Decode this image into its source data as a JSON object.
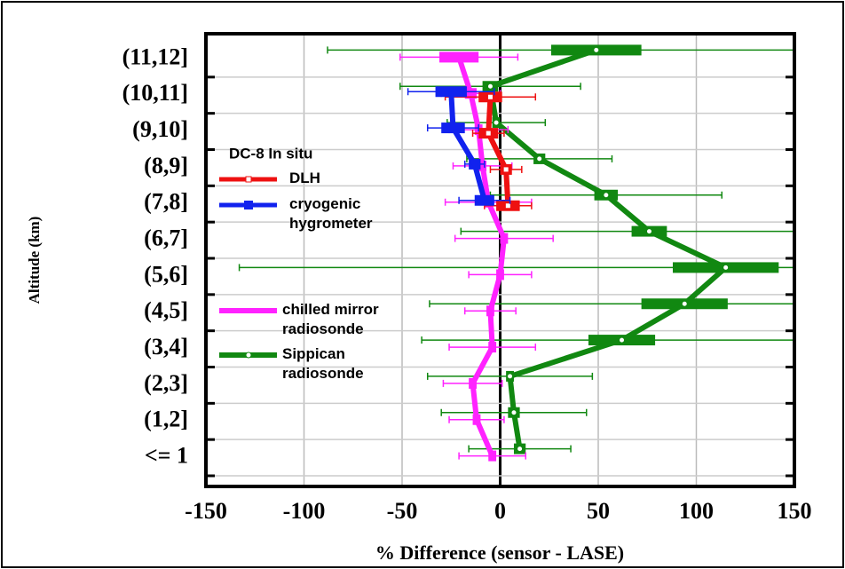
{
  "chart_data": {
    "type": "profile",
    "x_label": "% Difference (sensor - LASE)",
    "y_label": "Altitude (km)",
    "legend_title": "DC-8 In situ",
    "categories": [
      "<= 1",
      "(1,2]",
      "(2,3]",
      "(3,4]",
      "(4,5]",
      "(5,6]",
      "(6,7]",
      "(7,8]",
      "(8,9]",
      "(9,10]",
      "(10,11]",
      "(11,12]"
    ],
    "xlim": [
      -150,
      150
    ],
    "xticks": [
      -150,
      -100,
      -50,
      0,
      50,
      100,
      150
    ],
    "grid": true,
    "series": [
      {
        "name": "Sippican radiosonde",
        "color": "#118811",
        "values": [
          10,
          7,
          5,
          62,
          94,
          115,
          76,
          54,
          20,
          -2,
          -5,
          49
        ],
        "errors": [
          26,
          37,
          42,
          102,
          130,
          248,
          96,
          59,
          37,
          25,
          46,
          137
        ],
        "box": [
          3,
          3,
          2,
          17,
          22,
          27,
          9,
          6,
          3,
          2,
          4,
          23
        ]
      },
      {
        "name": "chilled mirror radiosonde",
        "color": "#ff22ff",
        "values": [
          -4,
          -12,
          -14,
          -4,
          -5,
          0,
          2,
          -6,
          -9,
          -11,
          -15,
          -21
        ],
        "errors": [
          17,
          14,
          15,
          22,
          13,
          16,
          25,
          22,
          15,
          15,
          15,
          30
        ],
        "box": [
          2,
          2,
          2,
          2,
          2,
          2,
          2,
          2,
          2,
          2,
          3,
          10
        ]
      },
      {
        "name": "DLH",
        "color": "#ee1111",
        "values": [
          null,
          null,
          null,
          null,
          null,
          null,
          null,
          4,
          3,
          -6,
          -5,
          null
        ],
        "errors": [
          null,
          null,
          null,
          null,
          null,
          null,
          null,
          12,
          8,
          8,
          23,
          null
        ],
        "box": [
          null,
          null,
          null,
          null,
          null,
          null,
          null,
          6,
          3,
          5,
          6,
          null
        ]
      },
      {
        "name": "cryogenic hygrometer",
        "color": "#1122ee",
        "values": [
          null,
          null,
          null,
          null,
          null,
          null,
          null,
          -8,
          -13,
          -24,
          -25,
          null
        ],
        "errors": [
          null,
          null,
          null,
          null,
          null,
          null,
          null,
          13,
          5,
          13,
          22,
          null
        ],
        "box": [
          null,
          null,
          null,
          null,
          null,
          null,
          null,
          5,
          3,
          6,
          8,
          null
        ]
      }
    ]
  }
}
